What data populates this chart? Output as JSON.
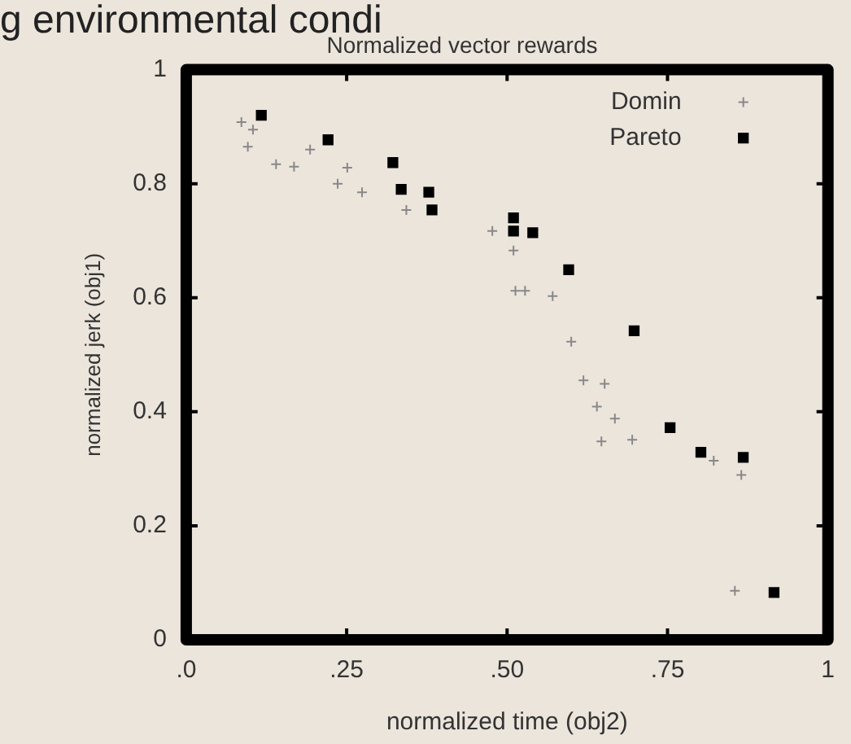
{
  "chart_data": {
    "type": "scatter",
    "title": "Normalized vector rewards",
    "xlabel": "normalized time (obj2)",
    "ylabel": "normalized jerk (obj1)",
    "annotations": [
      "g environmental condi"
    ],
    "xlim": [
      0,
      1
    ],
    "ylim": [
      0,
      1
    ],
    "xticks": [
      {
        "value": 0,
        "label": ".0"
      },
      {
        "value": 0.25,
        "label": ".25"
      },
      {
        "value": 0.5,
        "label": ".50"
      },
      {
        "value": 0.75,
        "label": ".75"
      },
      {
        "value": 1,
        "label": "1"
      }
    ],
    "yticks": [
      0,
      0.2,
      0.4,
      0.6,
      0.8,
      1
    ],
    "grid": false,
    "legend": "top right",
    "series": [
      {
        "name": "Domin",
        "color": "#888888",
        "marker": "cross",
        "x": [
          0.086,
          0.104,
          0.096,
          0.14,
          0.168,
          0.193,
          0.251,
          0.236,
          0.274,
          0.343,
          0.477,
          0.51,
          0.513,
          0.528,
          0.571,
          0.6,
          0.619,
          0.652,
          0.64,
          0.668,
          0.647,
          0.695,
          0.822,
          0.865,
          0.855
        ],
        "values": [
          0.908,
          0.895,
          0.865,
          0.834,
          0.83,
          0.86,
          0.828,
          0.8,
          0.785,
          0.754,
          0.717,
          0.683,
          0.612,
          0.612,
          0.603,
          0.523,
          0.455,
          0.449,
          0.409,
          0.388,
          0.348,
          0.351,
          0.314,
          0.289,
          0.086
        ]
      },
      {
        "name": "Pareto",
        "color": "#000000",
        "marker": "square",
        "x": [
          0.117,
          0.221,
          0.322,
          0.335,
          0.378,
          0.383,
          0.51,
          0.51,
          0.54,
          0.596,
          0.698,
          0.754,
          0.802,
          0.868,
          0.916
        ],
        "values": [
          0.92,
          0.877,
          0.837,
          0.79,
          0.785,
          0.754,
          0.74,
          0.717,
          0.714,
          0.649,
          0.542,
          0.372,
          0.329,
          0.32,
          0.083
        ]
      }
    ]
  }
}
